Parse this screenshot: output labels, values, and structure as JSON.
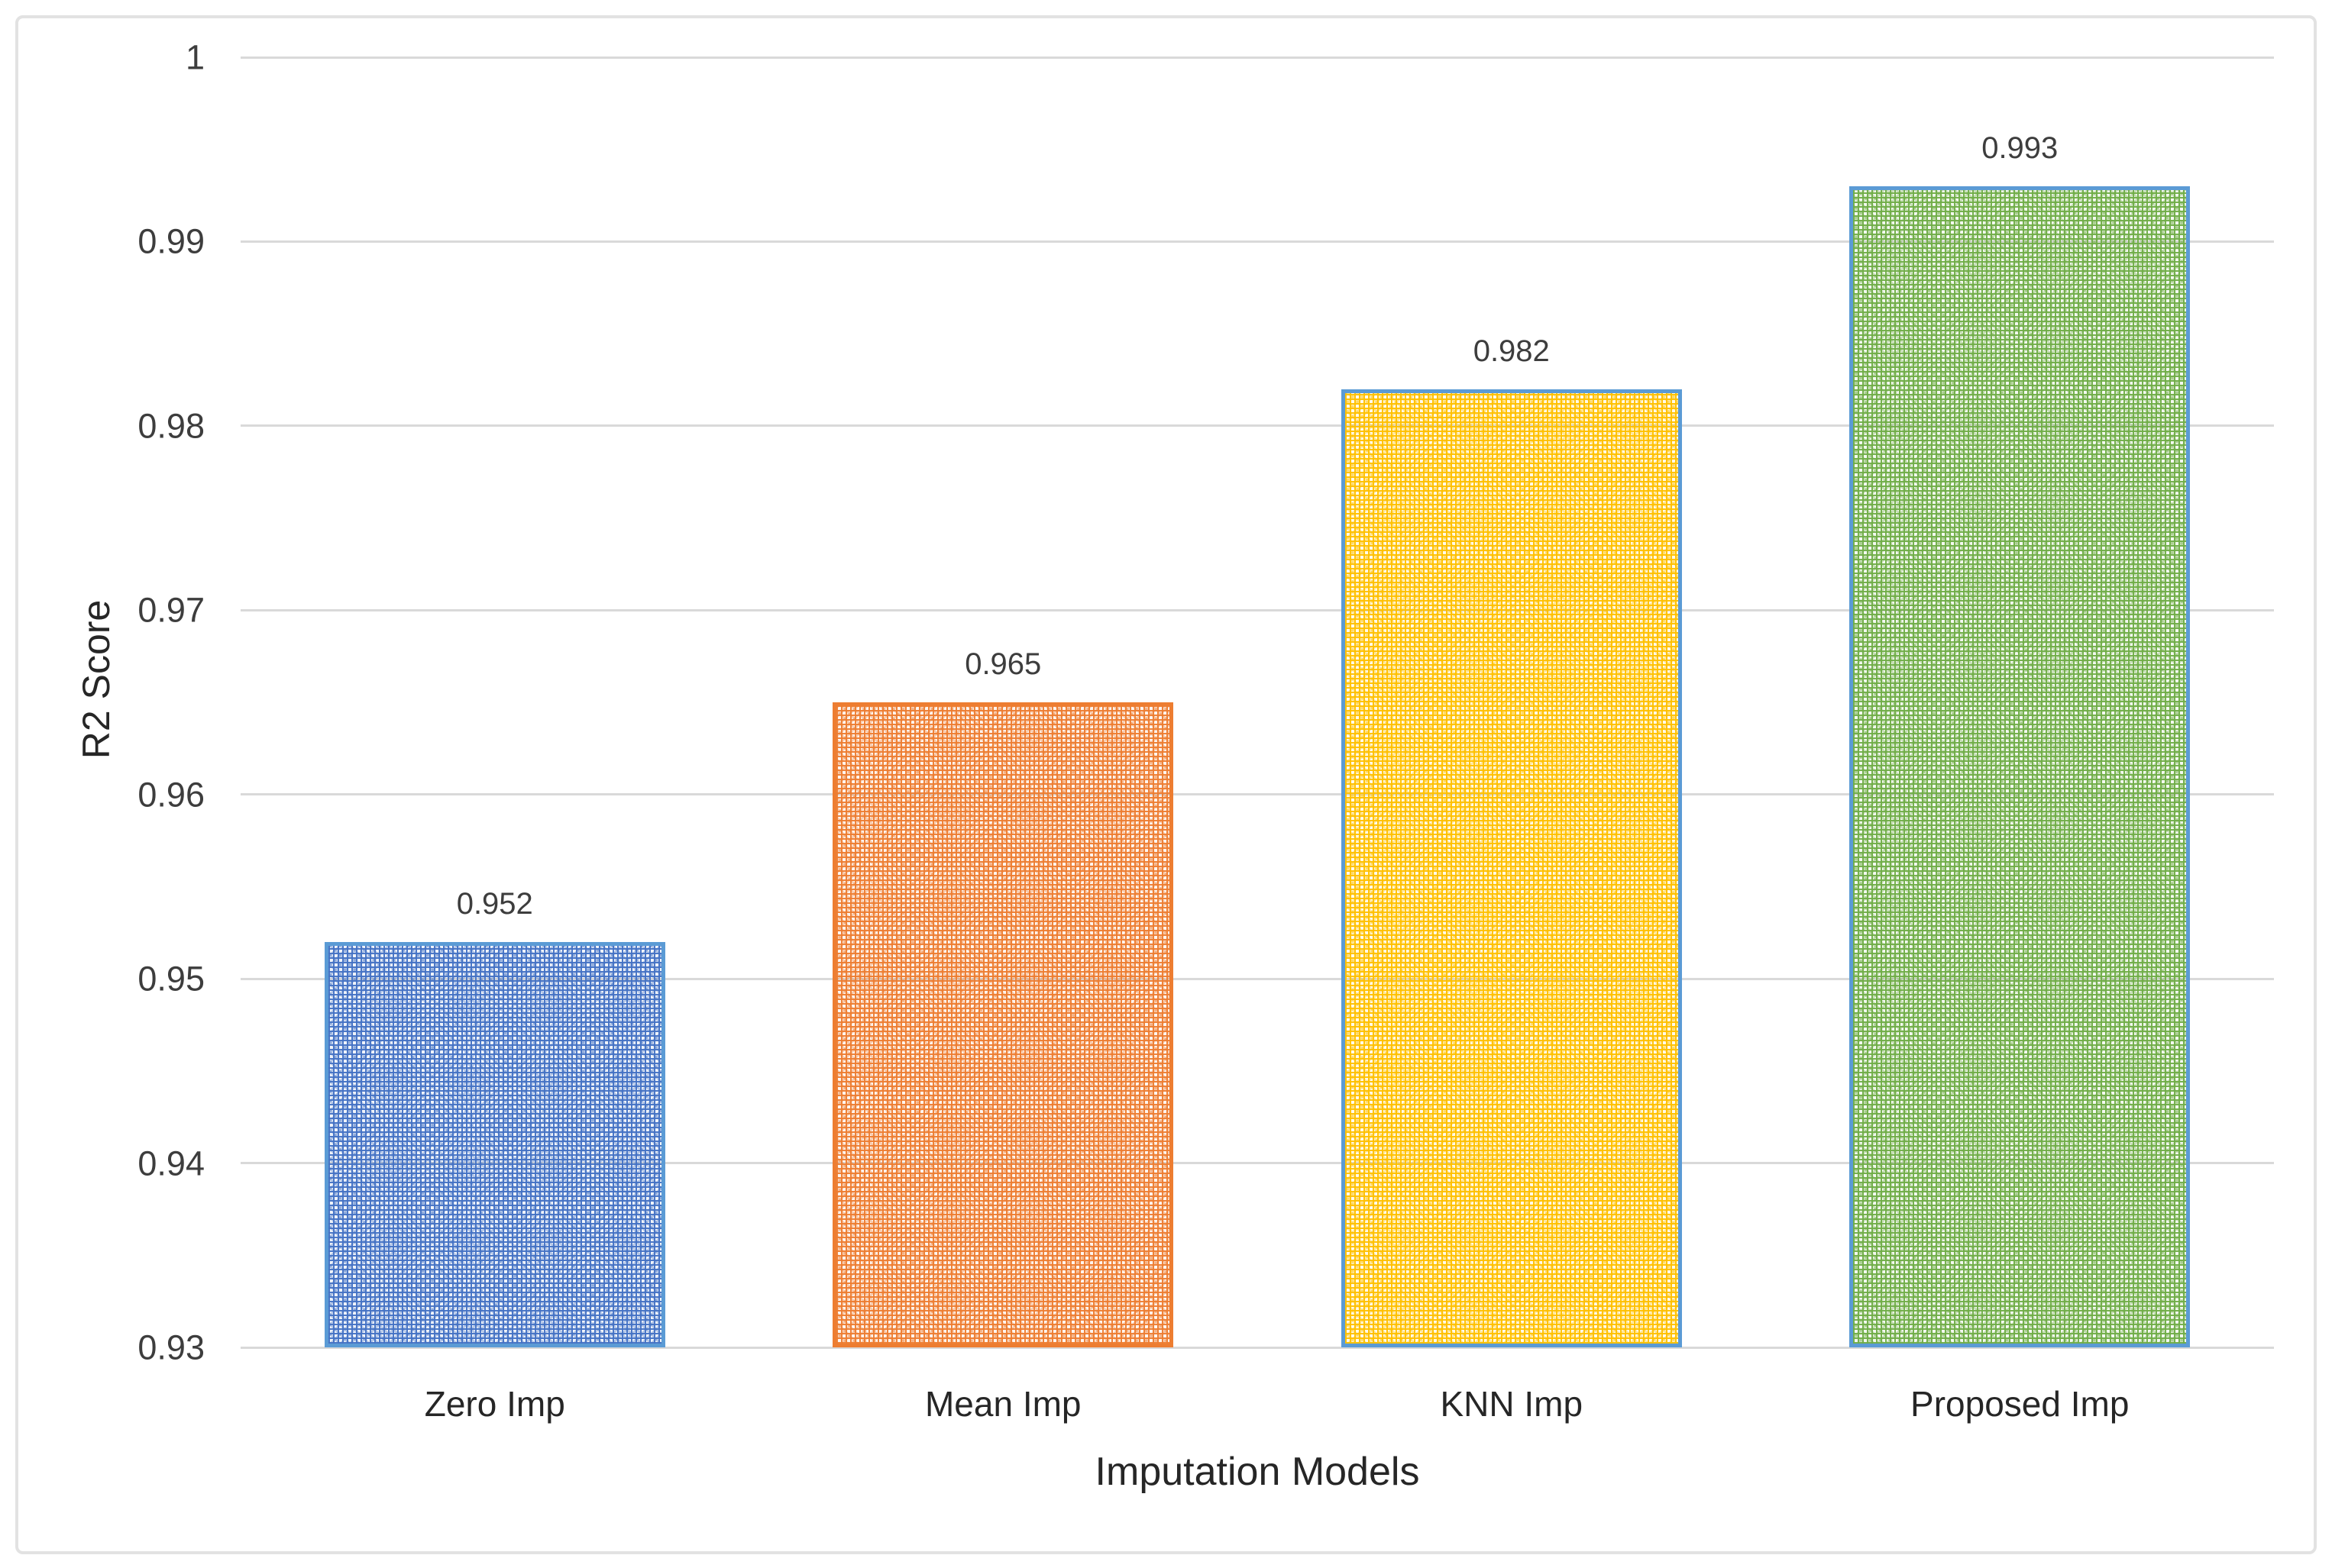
{
  "chart_data": {
    "type": "bar",
    "title": "",
    "xlabel": "Imputation Models",
    "ylabel": "R2 Score",
    "categories": [
      "Zero Imp",
      "Mean Imp",
      "KNN Imp",
      "Proposed Imp"
    ],
    "values": [
      0.952,
      0.965,
      0.982,
      0.993
    ],
    "value_labels": [
      "0.952",
      "0.965",
      "0.982",
      "0.993"
    ],
    "ylim": [
      0.93,
      1.0
    ],
    "ytick_step": 0.01,
    "ytick_labels": [
      "0.93",
      "0.94",
      "0.95",
      "0.96",
      "0.97",
      "0.98",
      "0.99",
      "1"
    ],
    "grid": "horizontal-only",
    "legend_position": "none",
    "bar_pattern": "woven-crosshatch",
    "bar_styles": [
      {
        "fill": "#4472C4",
        "border": "#5B9BD5"
      },
      {
        "fill": "#ED7D31",
        "border": "#ED7D31"
      },
      {
        "fill": "#FFC000",
        "border": "#5B9BD5"
      },
      {
        "fill": "#70AD47",
        "border": "#5B9BD5"
      }
    ],
    "colors": {
      "gridline": "#D9D9D9",
      "tick_text": "#3D3D3D",
      "axis_title_text": "#262626",
      "frame_border": "#E2E2E2",
      "background": "#FFFFFF"
    }
  }
}
